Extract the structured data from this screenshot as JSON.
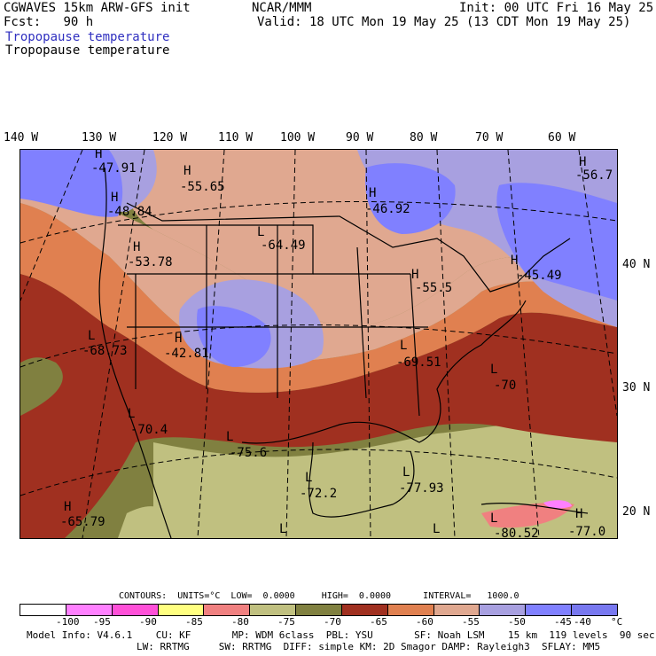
{
  "header": {
    "model": "CGWAVES 15km ARW-GFS init",
    "fcst_label": "Fcst:",
    "fcst_value": "90 h",
    "org": "NCAR/MMM",
    "init": "Init: 00 UTC Fri 16 May 25",
    "valid": "Valid: 18 UTC Mon 19 May 25 (13 CDT Mon 19 May 25)",
    "field_blue": "Tropopause temperature",
    "field_black": "Tropopause temperature"
  },
  "longitudes": [
    "140 W",
    "130 W",
    "120 W",
    "110 W",
    "100 W",
    "90 W",
    "80 W",
    "70 W",
    "60 W"
  ],
  "latitudes": [
    "40 N",
    "30 N",
    "20 N"
  ],
  "map_labels": [
    {
      "id": "h1",
      "text": "H"
    },
    {
      "id": "v1",
      "text": "-47.91"
    },
    {
      "id": "h2",
      "text": "H"
    },
    {
      "id": "v2",
      "text": "-55.65"
    },
    {
      "id": "h3",
      "text": "H"
    },
    {
      "id": "v3",
      "text": "-46.92"
    },
    {
      "id": "h4",
      "text": "H"
    },
    {
      "id": "v4",
      "text": "-56.7"
    },
    {
      "id": "h5",
      "text": "H"
    },
    {
      "id": "v5",
      "text": "-48.84"
    },
    {
      "id": "l1",
      "text": "L"
    },
    {
      "id": "v6",
      "text": "-64.49"
    },
    {
      "id": "h6",
      "text": "H"
    },
    {
      "id": "v7",
      "text": "-53.78"
    },
    {
      "id": "h7",
      "text": "H"
    },
    {
      "id": "v8",
      "text": "-45.49"
    },
    {
      "id": "h8",
      "text": "H"
    },
    {
      "id": "v9",
      "text": "-55.5"
    },
    {
      "id": "l2",
      "text": "L"
    },
    {
      "id": "v10",
      "text": "-68.73"
    },
    {
      "id": "h9",
      "text": "H"
    },
    {
      "id": "v11",
      "text": "-42.81"
    },
    {
      "id": "l3",
      "text": "L"
    },
    {
      "id": "v12",
      "text": "-69.51"
    },
    {
      "id": "l4",
      "text": "L"
    },
    {
      "id": "v13",
      "text": "-70"
    },
    {
      "id": "l5",
      "text": "L"
    },
    {
      "id": "v14",
      "text": "-70.4"
    },
    {
      "id": "l6",
      "text": "L"
    },
    {
      "id": "v15",
      "text": "-75.6"
    },
    {
      "id": "l7",
      "text": "L"
    },
    {
      "id": "v16",
      "text": "-72.2"
    },
    {
      "id": "l8",
      "text": "L"
    },
    {
      "id": "v17",
      "text": "-77.93"
    },
    {
      "id": "h10",
      "text": "H"
    },
    {
      "id": "v18",
      "text": "-65.79"
    },
    {
      "id": "l9",
      "text": "L"
    },
    {
      "id": "l10",
      "text": "L"
    },
    {
      "id": "l11",
      "text": "L"
    },
    {
      "id": "v19",
      "text": "-80.52"
    },
    {
      "id": "h11",
      "text": "H"
    },
    {
      "id": "v20",
      "text": "-77.0"
    }
  ],
  "legend": {
    "contours": "CONTOURS:  UNITS=°C  LOW=  0.0000     HIGH=  0.0000      INTERVAL=   1000.0",
    "colors": [
      "#ffffff",
      "#ff80ff",
      "#ff50d8",
      "#ffff80",
      "#f08080",
      "#c0c080",
      "#808040",
      "#a03020",
      "#e08050",
      "#e0a890",
      "#a8a0e0",
      "#8080ff",
      "#7878f0"
    ],
    "ticks": [
      "-100",
      "-95",
      "-90",
      "-85",
      "-80",
      "-75",
      "-70",
      "-65",
      "-60",
      "-55",
      "-50",
      "-45",
      "-40",
      "°C"
    ]
  },
  "footer": {
    "line1": "Model Info: V4.6.1    CU: KF       MP: WDM 6class  PBL: YSU       SF: Noah LSM    15 km  119 levels  90 sec",
    "line2": "LW: RRTMG     SW: RRTMG  DIFF: simple KM: 2D Smagor DAMP: Rayleigh3  SFLAY: MM5"
  }
}
